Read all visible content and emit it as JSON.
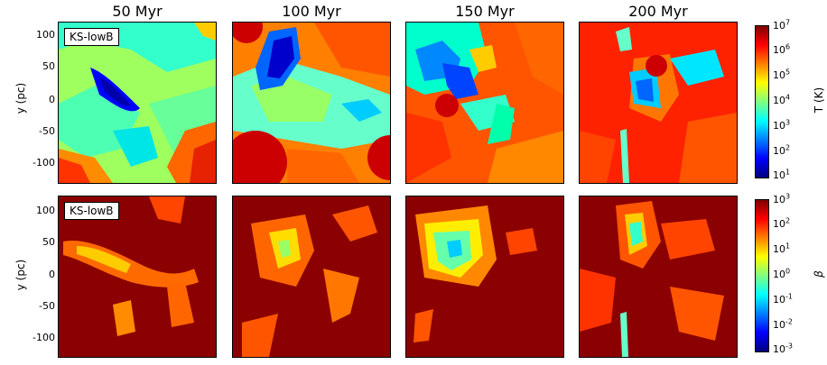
{
  "columns": [
    "50 Myr",
    "100 Myr",
    "150 Myr",
    "200 Myr"
  ],
  "panel_label": "KS-lowB",
  "y_axis": {
    "label": "y (pc)",
    "ticks": [
      "100",
      "50",
      "0",
      "-50",
      "-100"
    ]
  },
  "row1_colorbar": {
    "label": "T (K)",
    "ticks": [
      {
        "base": "10",
        "exp": "7"
      },
      {
        "base": "10",
        "exp": "6"
      },
      {
        "base": "10",
        "exp": "5"
      },
      {
        "base": "10",
        "exp": "4"
      },
      {
        "base": "10",
        "exp": "3"
      },
      {
        "base": "10",
        "exp": "2"
      },
      {
        "base": "10",
        "exp": "1"
      }
    ]
  },
  "row2_colorbar": {
    "label": "β",
    "ticks": [
      {
        "base": "10",
        "exp": "3"
      },
      {
        "base": "10",
        "exp": "2"
      },
      {
        "base": "10",
        "exp": "1"
      },
      {
        "base": "10",
        "exp": "0"
      },
      {
        "base": "10",
        "exp": "-1"
      },
      {
        "base": "10",
        "exp": "-2"
      },
      {
        "base": "10",
        "exp": "-3"
      }
    ]
  },
  "colormap": [
    "#00007f",
    "#0000ff",
    "#007fff",
    "#00ffff",
    "#7fff7f",
    "#ffff00",
    "#ff7f00",
    "#ff0000",
    "#7f0000"
  ]
}
